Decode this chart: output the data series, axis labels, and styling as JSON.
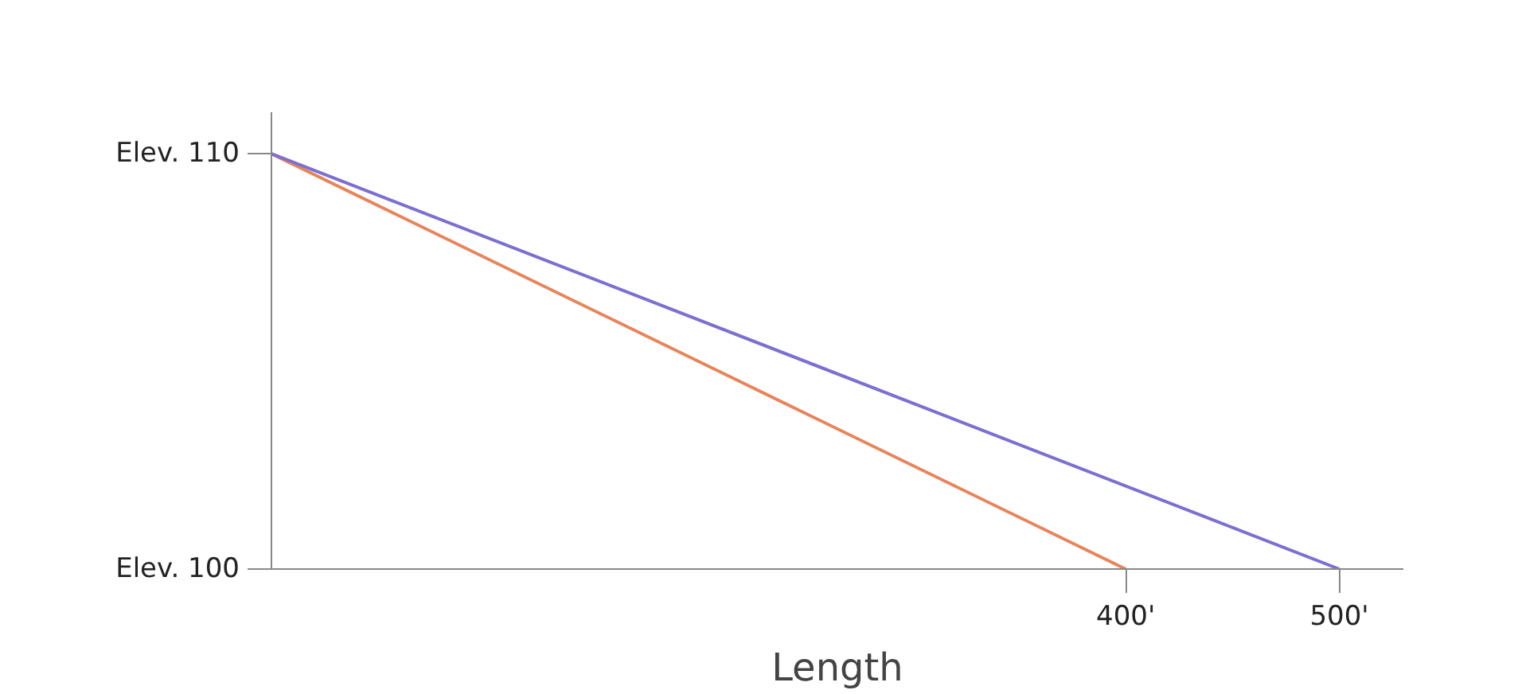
{
  "chart_data": {
    "type": "line",
    "xlabel": "Length",
    "xlim": [
      0,
      530
    ],
    "ylim": [
      100,
      111
    ],
    "xticks": [
      {
        "value": 400,
        "label": "400'"
      },
      {
        "value": 500,
        "label": "500'"
      }
    ],
    "yticks": [
      {
        "value": 100,
        "label": "Elev. 100"
      },
      {
        "value": 110,
        "label": "Elev. 110"
      }
    ],
    "series": [
      {
        "color": "#e8845a",
        "x": [
          0,
          400
        ],
        "values": [
          110,
          100
        ]
      },
      {
        "color": "#7b6fd0",
        "x": [
          0,
          500
        ],
        "values": [
          110,
          100
        ]
      }
    ],
    "grid": false,
    "marker": "none",
    "line_style": "solid"
  }
}
